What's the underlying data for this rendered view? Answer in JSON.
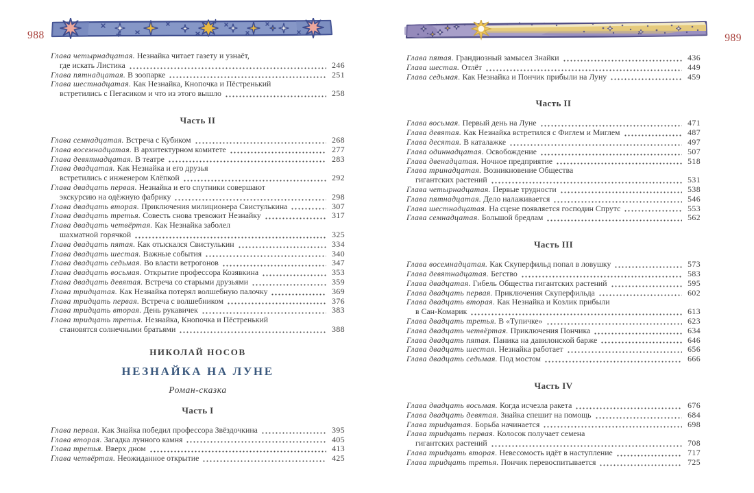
{
  "colors": {
    "folio_red": "#a8403a",
    "title_blue": "#3a587d",
    "band_blue": "#8697c7",
    "band_purple": "#a89fc9",
    "star_yellow": "#e9b83f",
    "star_pink": "#eda79c"
  },
  "pages": {
    "left": {
      "folio": "988",
      "band_icon": "stars-band",
      "blocks": [
        {
          "type": "entries",
          "items": [
            {
              "label": "Глава четырнадцатая.",
              "title": "Незнайка читает газету и узнаёт,",
              "wrap": "где искать Листика",
              "page": "246"
            },
            {
              "label": "Глава пятнадцатая.",
              "title": "В зоопарке",
              "page": "251"
            },
            {
              "label": "Глава шестнадцатая.",
              "title": "Как Незнайка, Кнопочка и Пёстренький",
              "wrap": "встретились с Пегасиком и что из этого вышло",
              "page": "258"
            }
          ]
        },
        {
          "type": "heading",
          "class": "part",
          "text": "Часть II"
        },
        {
          "type": "entries",
          "items": [
            {
              "label": "Глава семнадцатая.",
              "title": "Встреча с Кубиком",
              "page": "268"
            },
            {
              "label": "Глава восемнадцатая.",
              "title": "В архитектурном комитете",
              "page": "277"
            },
            {
              "label": "Глава девятнадцатая.",
              "title": "В театре",
              "page": "283"
            },
            {
              "label": "Глава двадцатая.",
              "title": "Как Незнайка и его друзья",
              "wrap": "встретились с инженером Клёпкой",
              "page": "292"
            },
            {
              "label": "Глава двадцать первая.",
              "title": "Незнайка и его спутники совершают",
              "wrap": "экскурсию на одёжную фабрику",
              "page": "298"
            },
            {
              "label": "Глава двадцать вторая.",
              "title": "Приключения милиционера Свистулькина",
              "page": "307"
            },
            {
              "label": "Глава двадцать третья.",
              "title": "Совесть снова тревожит Незнайку",
              "page": "317"
            },
            {
              "label": "Глава двадцать четвёртая.",
              "title": "Как Незнайка заболел",
              "wrap": "шахматной горячкой",
              "page": "325"
            },
            {
              "label": "Глава двадцать пятая.",
              "title": "Как отыскался Свистулькин",
              "page": "334"
            },
            {
              "label": "Глава двадцать шестая.",
              "title": "Важные события",
              "page": "340"
            },
            {
              "label": "Глава двадцать седьмая.",
              "title": "Во власти ветрогонов",
              "page": "347"
            },
            {
              "label": "Глава двадцать восьмая.",
              "title": "Открытие профессора Козявкина",
              "page": "353"
            },
            {
              "label": "Глава двадцать девятая.",
              "title": "Встреча со старыми друзьями",
              "page": "359"
            },
            {
              "label": "Глава тридцатая.",
              "title": "Как Незнайка потерял волшебную палочку",
              "page": "369"
            },
            {
              "label": "Глава тридцать первая.",
              "title": "Встреча с волшебником",
              "page": "376"
            },
            {
              "label": "Глава тридцать вторая.",
              "title": "День рукавичек",
              "page": "383"
            },
            {
              "label": "Глава тридцать третья.",
              "title": "Незнайка, Кнопочка и Пёстренький",
              "wrap": "становятся солнечными братьями",
              "page": "388"
            }
          ]
        },
        {
          "type": "heading",
          "class": "author",
          "text": "НИКОЛАЙ НОСОВ"
        },
        {
          "type": "heading",
          "class": "book-title",
          "text": "НЕЗНАЙКА НА ЛУНЕ"
        },
        {
          "type": "heading",
          "class": "subtitle",
          "text": "Роман-сказка"
        },
        {
          "type": "heading",
          "class": "part",
          "text": "Часть I"
        },
        {
          "type": "entries",
          "items": [
            {
              "label": "Глава первая.",
              "title": "Как Знайка победил профессора Звёздочкина",
              "page": "395"
            },
            {
              "label": "Глава вторая.",
              "title": "Загадка лунного камня",
              "page": "405"
            },
            {
              "label": "Глава третья.",
              "title": "Вверх дном",
              "page": "413"
            },
            {
              "label": "Глава четвёртая.",
              "title": "Неожиданное открытие",
              "page": "425"
            }
          ]
        }
      ]
    },
    "right": {
      "folio": "989",
      "band_icon": "comet-band",
      "blocks": [
        {
          "type": "entries",
          "items": [
            {
              "label": "Глава пятая.",
              "title": "Грандиозный замысел Знайки",
              "page": "436"
            },
            {
              "label": "Глава шестая.",
              "title": "Отлёт",
              "page": "449"
            },
            {
              "label": "Глава седьмая.",
              "title": "Как Незнайка и Пончик прибыли на Луну",
              "page": "459"
            }
          ]
        },
        {
          "type": "heading",
          "class": "part",
          "text": "Часть II"
        },
        {
          "type": "entries",
          "items": [
            {
              "label": "Глава восьмая.",
              "title": "Первый день на Луне",
              "page": "471"
            },
            {
              "label": "Глава девятая.",
              "title": "Как Незнайка встретился с Фиглем и Миглем",
              "page": "487"
            },
            {
              "label": "Глава десятая.",
              "title": "В каталажке",
              "page": "497"
            },
            {
              "label": "Глава одиннадцатая.",
              "title": "Освобождение",
              "page": "507"
            },
            {
              "label": "Глава двенадцатая.",
              "title": "Ночное предприятие",
              "page": "518"
            },
            {
              "label": "Глава тринадцатая.",
              "title": "Возникновение Общества",
              "wrap": "гигантских растений",
              "page": "531"
            },
            {
              "label": "Глава четырнадцатая.",
              "title": "Первые трудности",
              "page": "538"
            },
            {
              "label": "Глава пятнадцатая.",
              "title": "Дело налаживается",
              "page": "546"
            },
            {
              "label": "Глава шестнадцатая.",
              "title": "На сцене появляется господин Спрутс",
              "page": "553"
            },
            {
              "label": "Глава семнадцатая.",
              "title": "Большой бредлам",
              "page": "562"
            }
          ]
        },
        {
          "type": "heading",
          "class": "part",
          "text": "Часть III"
        },
        {
          "type": "entries",
          "items": [
            {
              "label": "Глава восемнадцатая.",
              "title": "Как Скуперфильд попал в ловушку",
              "page": "573"
            },
            {
              "label": "Глава девятнадцатая.",
              "title": "Бегство",
              "page": "583"
            },
            {
              "label": "Глава двадцатая.",
              "title": "Гибель Общества гигантских растений",
              "page": "595"
            },
            {
              "label": "Глава двадцать первая.",
              "title": "Приключения Скуперфильда",
              "page": "602"
            },
            {
              "label": "Глава двадцать вторая.",
              "title": "Как Незнайка и Козлик прибыли",
              "wrap": "в Сан-Комарик",
              "page": "613"
            },
            {
              "label": "Глава двадцать третья.",
              "title": "В «Тупичке»",
              "page": "623"
            },
            {
              "label": "Глава двадцать четвёртая.",
              "title": "Приключения Пончика",
              "page": "634"
            },
            {
              "label": "Глава двадцать пятая.",
              "title": "Паника на давилонской барже",
              "page": "646"
            },
            {
              "label": "Глава двадцать шестая.",
              "title": "Незнайка работает",
              "page": "656"
            },
            {
              "label": "Глава двадцать седьмая.",
              "title": "Под мостом",
              "page": "666"
            }
          ]
        },
        {
          "type": "heading",
          "class": "part",
          "text": "Часть IV"
        },
        {
          "type": "entries",
          "items": [
            {
              "label": "Глава двадцать восьмая.",
              "title": "Когда исчезла ракета",
              "page": "676"
            },
            {
              "label": "Глава двадцать девятая.",
              "title": "Знайка спешит на помощь",
              "page": "684"
            },
            {
              "label": "Глава тридцатая.",
              "title": "Борьба начинается",
              "page": "698"
            },
            {
              "label": "Глава тридцать первая.",
              "title": "Колосок получает семена",
              "wrap": "гигантских растений",
              "page": "708"
            },
            {
              "label": "Глава тридцать вторая.",
              "title": "Невесомость идёт в наступление",
              "page": "717"
            },
            {
              "label": "Глава тридцать третья.",
              "title": "Пончик перевоспитывается",
              "page": "725"
            }
          ]
        }
      ]
    }
  }
}
